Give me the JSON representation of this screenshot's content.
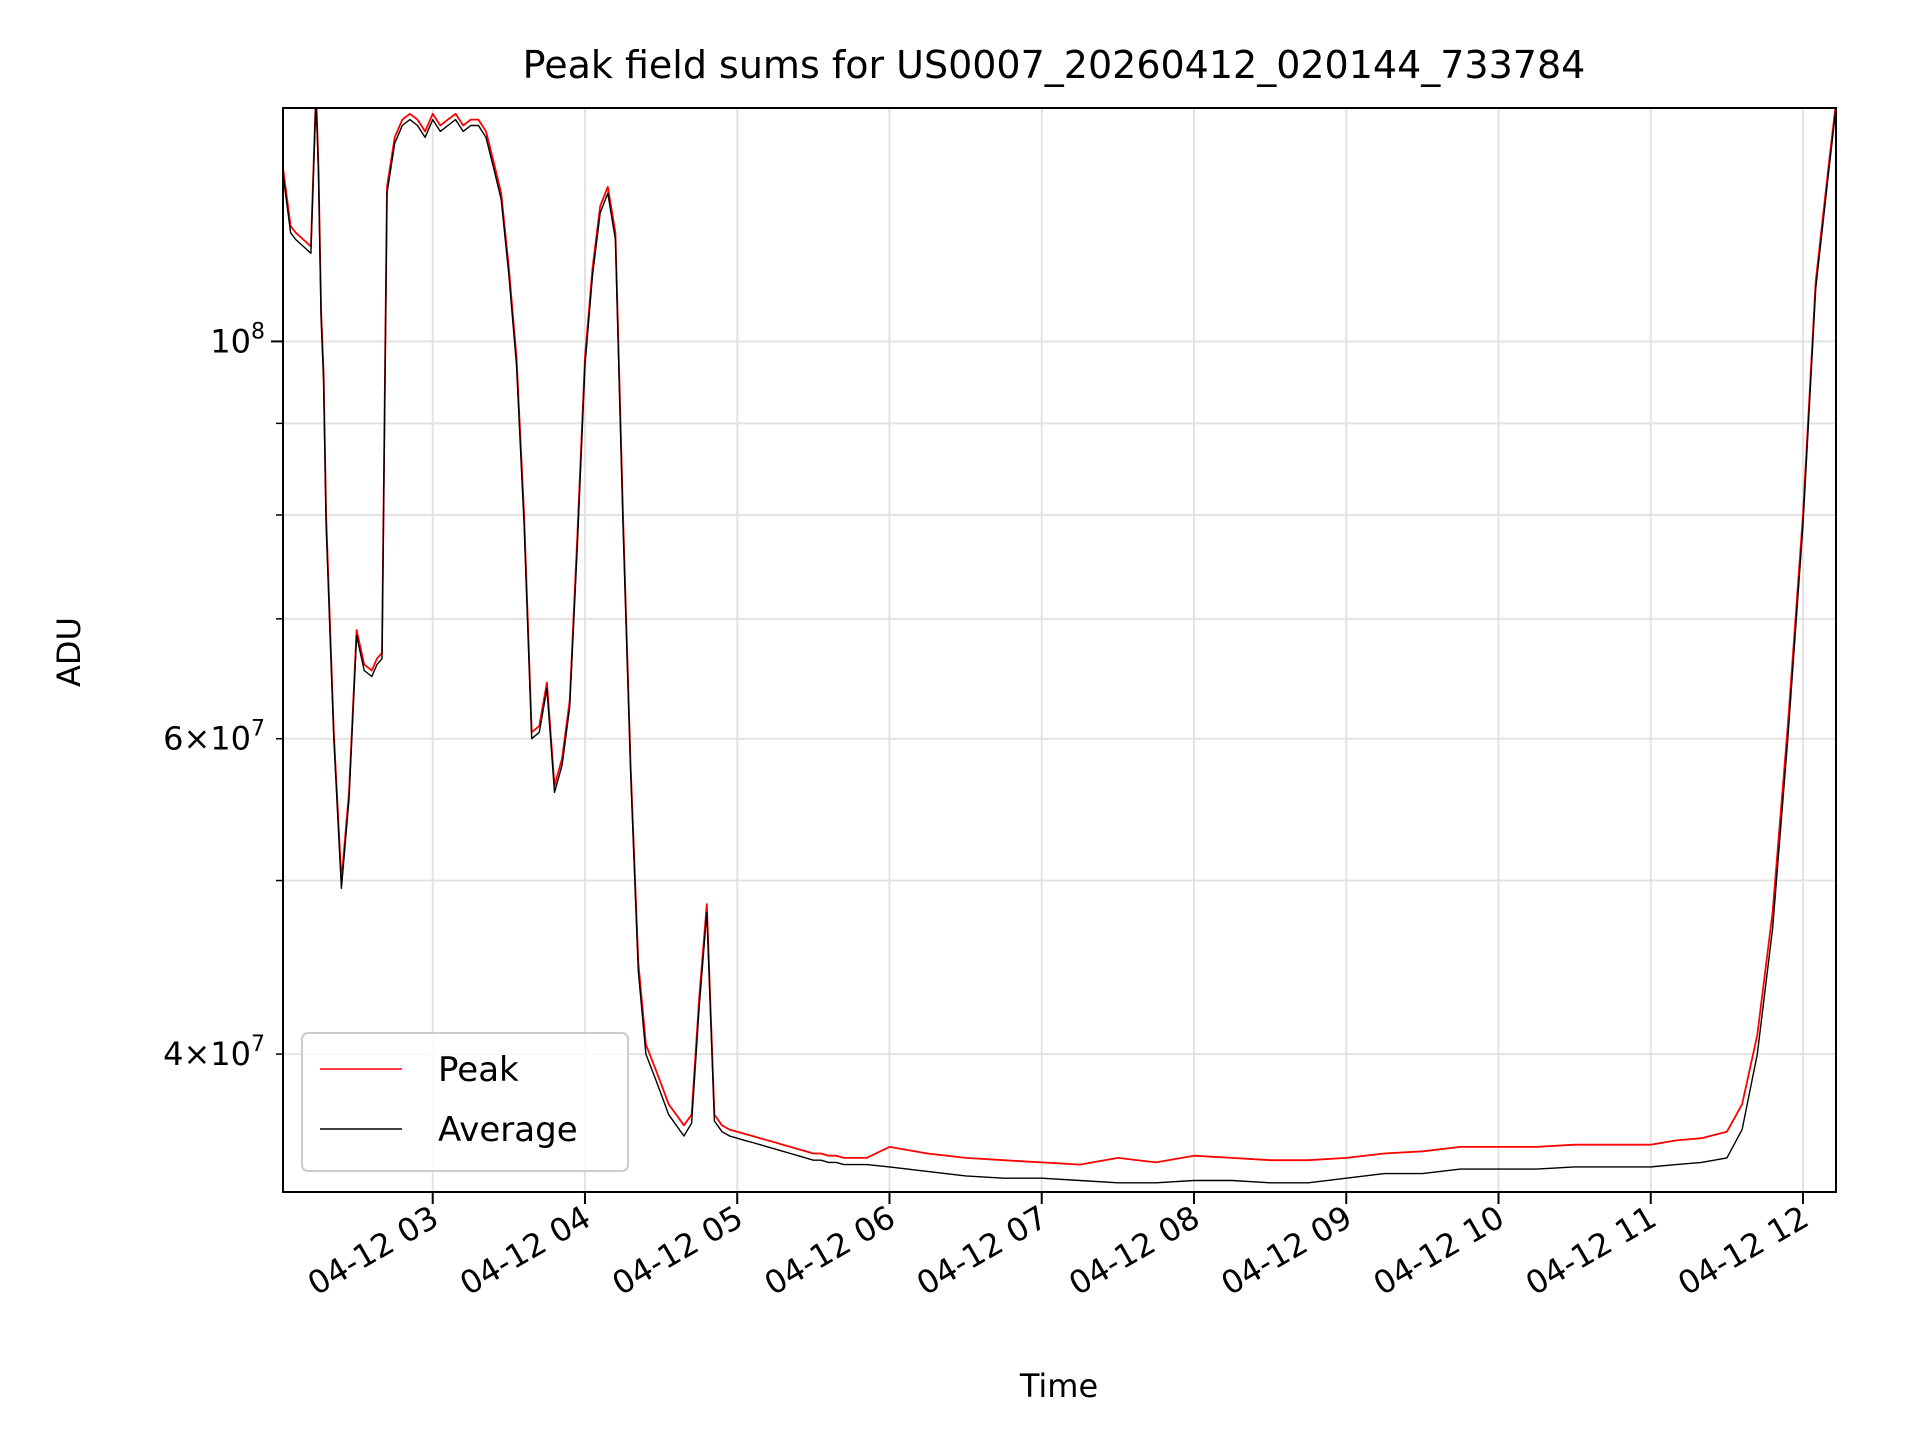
{
  "chart_data": {
    "type": "line",
    "title": "Peak field sums for US0007_20260412_020144_733784",
    "xlabel": "Time",
    "ylabel": "ADU",
    "yscale": "log",
    "ylim": [
      33500000,
      135000000
    ],
    "xlim": [
      "2026-04-12 02:01",
      "2026-04-12 12:13"
    ],
    "grid": true,
    "legend_position": "lower-left",
    "x_ticks": [
      "04-12 03",
      "04-12 04",
      "04-12 05",
      "04-12 06",
      "04-12 07",
      "04-12 08",
      "04-12 09",
      "04-12 10",
      "04-12 11",
      "04-12 12"
    ],
    "y_major_ticks": [
      {
        "value": 100000000,
        "mantissa": "",
        "exponent": "8"
      }
    ],
    "y_minor_ticks": [
      {
        "value": 40000000,
        "mantissa": "4",
        "exponent": "7"
      },
      {
        "value": 60000000,
        "mantissa": "6",
        "exponent": "7"
      }
    ],
    "times_symbol": "×",
    "base_label": "10",
    "series": [
      {
        "name": "Peak",
        "color": "#ff0000",
        "x": [
          "02:01",
          "02:04",
          "02:06",
          "02:09",
          "02:12",
          "02:14",
          "02:15",
          "02:16",
          "02:17",
          "02:18",
          "02:21",
          "02:24",
          "02:27",
          "02:30",
          "02:33",
          "02:36",
          "02:38",
          "02:40",
          "02:42",
          "02:45",
          "02:48",
          "02:51",
          "02:54",
          "02:57",
          "03:00",
          "03:03",
          "03:06",
          "03:09",
          "03:12",
          "03:15",
          "03:18",
          "03:21",
          "03:24",
          "03:27",
          "03:30",
          "03:33",
          "03:36",
          "03:39",
          "03:42",
          "03:45",
          "03:48",
          "03:51",
          "03:54",
          "03:57",
          "04:00",
          "04:03",
          "04:06",
          "04:09",
          "04:12",
          "04:15",
          "04:18",
          "04:21",
          "04:24",
          "04:27",
          "04:30",
          "04:33",
          "04:36",
          "04:39",
          "04:42",
          "04:45",
          "04:48",
          "04:51",
          "04:54",
          "04:57",
          "05:00",
          "05:03",
          "05:06",
          "05:09",
          "05:12",
          "05:15",
          "05:18",
          "05:21",
          "05:24",
          "05:27",
          "05:30",
          "05:33",
          "05:36",
          "05:39",
          "05:42",
          "05:45",
          "05:48",
          "05:51",
          "06:00",
          "06:15",
          "06:30",
          "06:45",
          "07:00",
          "07:15",
          "07:30",
          "07:45",
          "08:00",
          "08:15",
          "08:30",
          "08:45",
          "09:00",
          "09:15",
          "09:30",
          "09:45",
          "10:00",
          "10:15",
          "10:30",
          "10:45",
          "11:00",
          "11:10",
          "11:20",
          "11:30",
          "11:36",
          "11:42",
          "11:48",
          "11:54",
          "12:00",
          "12:05",
          "12:10",
          "12:13"
        ],
        "y": [
          125000000,
          116000000,
          115000000,
          114000000,
          113000000,
          138000000,
          125000000,
          104000000,
          96000000,
          80000000,
          60500000,
          50000000,
          56000000,
          69000000,
          66000000,
          65500000,
          66500000,
          67000000,
          122000000,
          130000000,
          133000000,
          134000000,
          133000000,
          131000000,
          134000000,
          132000000,
          133000000,
          134000000,
          132000000,
          133000000,
          133000000,
          131000000,
          126000000,
          121000000,
          110000000,
          98000000,
          80000000,
          60500000,
          61000000,
          64500000,
          56500000,
          58500000,
          63000000,
          78000000,
          98000000,
          110000000,
          119000000,
          122000000,
          115000000,
          80000000,
          58000000,
          45000000,
          40500000,
          39500000,
          38500000,
          37500000,
          37000000,
          36500000,
          37000000,
          43000000,
          48500000,
          37000000,
          36500000,
          36300000,
          36200000,
          36100000,
          36000000,
          35900000,
          35800000,
          35700000,
          35600000,
          35500000,
          35400000,
          35300000,
          35200000,
          35200000,
          35100000,
          35100000,
          35000000,
          35000000,
          35000000,
          35000000,
          35500000,
          35200000,
          35000000,
          34900000,
          34800000,
          34700000,
          35000000,
          34800000,
          35100000,
          35000000,
          34900000,
          34900000,
          35000000,
          35200000,
          35300000,
          35500000,
          35500000,
          35500000,
          35600000,
          35600000,
          35600000,
          35800000,
          35900000,
          36200000,
          37500000,
          41000000,
          48000000,
          61000000,
          80000000,
          108000000,
          125000000,
          136000000
        ]
      },
      {
        "name": "Average",
        "color": "#000000",
        "x": [
          "02:01",
          "02:04",
          "02:06",
          "02:09",
          "02:12",
          "02:14",
          "02:15",
          "02:16",
          "02:17",
          "02:18",
          "02:21",
          "02:24",
          "02:27",
          "02:30",
          "02:33",
          "02:36",
          "02:38",
          "02:40",
          "02:42",
          "02:45",
          "02:48",
          "02:51",
          "02:54",
          "02:57",
          "03:00",
          "03:03",
          "03:06",
          "03:09",
          "03:12",
          "03:15",
          "03:18",
          "03:21",
          "03:24",
          "03:27",
          "03:30",
          "03:33",
          "03:36",
          "03:39",
          "03:42",
          "03:45",
          "03:48",
          "03:51",
          "03:54",
          "03:57",
          "04:00",
          "04:03",
          "04:06",
          "04:09",
          "04:12",
          "04:15",
          "04:18",
          "04:21",
          "04:24",
          "04:27",
          "04:30",
          "04:33",
          "04:36",
          "04:39",
          "04:42",
          "04:45",
          "04:48",
          "04:51",
          "04:54",
          "04:57",
          "05:00",
          "05:03",
          "05:06",
          "05:09",
          "05:12",
          "05:15",
          "05:18",
          "05:21",
          "05:24",
          "05:27",
          "05:30",
          "05:33",
          "05:36",
          "05:39",
          "05:42",
          "05:45",
          "05:48",
          "05:51",
          "06:00",
          "06:15",
          "06:30",
          "06:45",
          "07:00",
          "07:15",
          "07:30",
          "07:45",
          "08:00",
          "08:15",
          "08:30",
          "08:45",
          "09:00",
          "09:15",
          "09:30",
          "09:45",
          "10:00",
          "10:15",
          "10:30",
          "10:45",
          "11:00",
          "11:10",
          "11:20",
          "11:30",
          "11:36",
          "11:42",
          "11:48",
          "11:54",
          "12:00",
          "12:05",
          "12:10",
          "12:13"
        ],
        "y": [
          124000000,
          115000000,
          114000000,
          113000000,
          112000000,
          137000000,
          124000000,
          103000000,
          95000000,
          79000000,
          60000000,
          49500000,
          55500000,
          68500000,
          65500000,
          65000000,
          66000000,
          66500000,
          121000000,
          129000000,
          132000000,
          133000000,
          132000000,
          130000000,
          133000000,
          131000000,
          132000000,
          133000000,
          131000000,
          132000000,
          132000000,
          130000000,
          125000000,
          120000000,
          109000000,
          97000000,
          79000000,
          60000000,
          60500000,
          64000000,
          56000000,
          58000000,
          62500000,
          77000000,
          97000000,
          109000000,
          118000000,
          121000000,
          114000000,
          79000000,
          57500000,
          44500000,
          40000000,
          39000000,
          38000000,
          37000000,
          36500000,
          36000000,
          36600000,
          42500000,
          48000000,
          36700000,
          36200000,
          36000000,
          35900000,
          35800000,
          35700000,
          35600000,
          35500000,
          35400000,
          35300000,
          35200000,
          35100000,
          35000000,
          34900000,
          34900000,
          34800000,
          34800000,
          34700000,
          34700000,
          34700000,
          34700000,
          34600000,
          34400000,
          34200000,
          34100000,
          34100000,
          34000000,
          33900000,
          33900000,
          34000000,
          34000000,
          33900000,
          33900000,
          34100000,
          34300000,
          34300000,
          34500000,
          34500000,
          34500000,
          34600000,
          34600000,
          34600000,
          34700000,
          34800000,
          35000000,
          36300000,
          40000000,
          47000000,
          60000000,
          79000000,
          107000000,
          124000000,
          135000000
        ]
      }
    ]
  }
}
